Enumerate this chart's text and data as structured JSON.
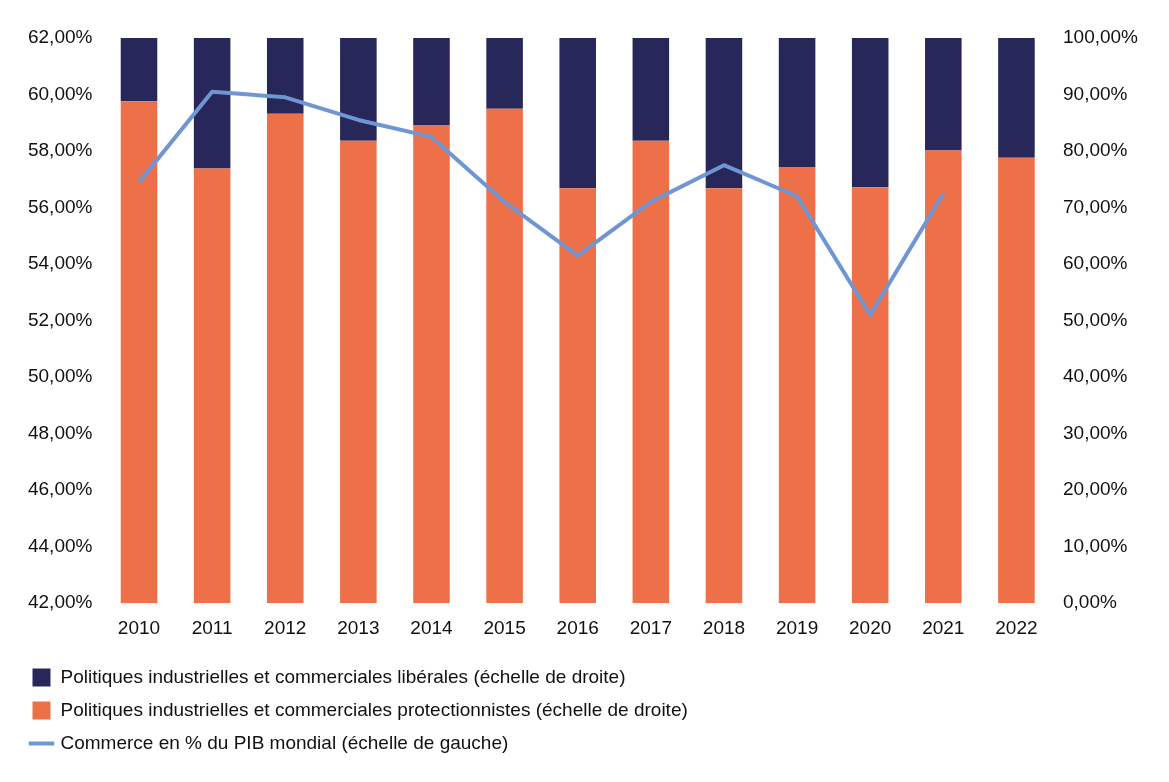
{
  "chart_data": {
    "type": "bar",
    "stacked": true,
    "categories": [
      "2010",
      "2011",
      "2012",
      "2013",
      "2014",
      "2015",
      "2016",
      "2017",
      "2018",
      "2019",
      "2020",
      "2021",
      "2022"
    ],
    "series": [
      {
        "name": "Politiques industrielles et commerciales protectionnistes (échelle de droite)",
        "color": "#ee7048",
        "axis": "y2",
        "values": [
          88.8,
          76.9,
          86.6,
          81.8,
          84.5,
          87.5,
          73.4,
          81.8,
          73.4,
          77.1,
          73.6,
          80.1,
          78.8
        ]
      },
      {
        "name": "Politiques industrielles et commerciales libérales (échelle de droite)",
        "color": "#27275a",
        "axis": "y2",
        "values": [
          11.2,
          23.1,
          13.4,
          18.2,
          15.5,
          12.5,
          26.6,
          18.2,
          26.6,
          22.9,
          26.4,
          19.9,
          21.2
        ]
      },
      {
        "name": "Commerce en % du PIB mondial (échelle de gauche)",
        "type": "line",
        "color": "#6f95d2",
        "axis": "y",
        "values": [
          56.9,
          60.1,
          59.9,
          59.1,
          58.5,
          56.2,
          54.3,
          56.2,
          57.5,
          56.4,
          52.2,
          56.5,
          null
        ]
      }
    ],
    "ylim": [
      42,
      62
    ],
    "yticks": [
      {
        "value": 42,
        "label": "42,00%"
      },
      {
        "value": 44,
        "label": "44,00%"
      },
      {
        "value": 46,
        "label": "46,00%"
      },
      {
        "value": 48,
        "label": "48,00%"
      },
      {
        "value": 50,
        "label": "50,00%"
      },
      {
        "value": 52,
        "label": "52,00%"
      },
      {
        "value": 54,
        "label": "54,00%"
      },
      {
        "value": 56,
        "label": "56,00%"
      },
      {
        "value": 58,
        "label": "58,00%"
      },
      {
        "value": 60,
        "label": "60,00%"
      },
      {
        "value": 62,
        "label": "62,00%"
      }
    ],
    "y2lim": [
      0,
      100
    ],
    "y2ticks": [
      {
        "value": 0,
        "label": "0,00%"
      },
      {
        "value": 10,
        "label": "10,00%"
      },
      {
        "value": 20,
        "label": "20,00%"
      },
      {
        "value": 30,
        "label": "30,00%"
      },
      {
        "value": 40,
        "label": "40,00%"
      },
      {
        "value": 50,
        "label": "50,00%"
      },
      {
        "value": 60,
        "label": "60,00%"
      },
      {
        "value": 70,
        "label": "70,00%"
      },
      {
        "value": 80,
        "label": "80,00%"
      },
      {
        "value": 90,
        "label": "90,00%"
      },
      {
        "value": 100,
        "label": "100,00%"
      }
    ],
    "grid": false,
    "legend": "bottom",
    "marker": "none"
  }
}
